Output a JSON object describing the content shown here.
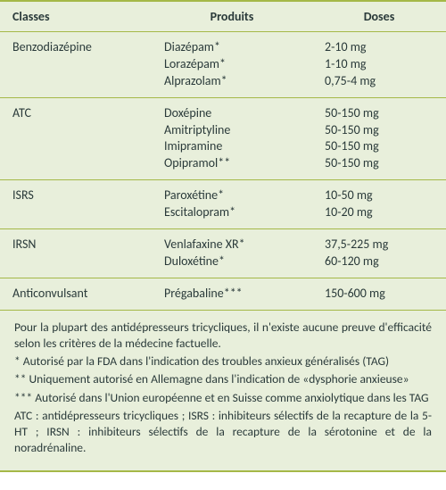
{
  "colors": {
    "background": "#e8efdb",
    "rule": "#a5b848",
    "text": "#2a3a3a"
  },
  "header": {
    "classes": "Classes",
    "produits": "Produits",
    "doses": "Doses"
  },
  "rows": [
    {
      "class": "Benzodiazépine",
      "products": [
        "Diazépam*",
        "Lorazépam*",
        "Alprazolam*"
      ],
      "doses": [
        "2-10 mg",
        "1-10 mg",
        "0,75-4 mg"
      ]
    },
    {
      "class": "ATC",
      "products": [
        "Doxépine",
        "Amitriptyline",
        "Imipramine",
        "Opipramol**"
      ],
      "doses": [
        "50-150 mg",
        "50-150 mg",
        "50-150 mg",
        "50-150 mg"
      ]
    },
    {
      "class": "ISRS",
      "products": [
        "Paroxétine*",
        "Escitalopram*"
      ],
      "doses": [
        "10-50 mg",
        "10-20 mg"
      ]
    },
    {
      "class": "IRSN",
      "products": [
        "Venlafaxine XR*",
        "Duloxétine*"
      ],
      "doses": [
        "37,5-225 mg",
        "60-120 mg"
      ]
    },
    {
      "class": "Anticonvulsant",
      "products": [
        "Prégabaline***"
      ],
      "doses": [
        "150-600 mg"
      ]
    }
  ],
  "footnotes": [
    "Pour la plupart des antidépresseurs tricycliques, il n'existe aucune preuve d'efficacité selon les critères de la médecine factuelle.",
    "* Autorisé par la FDA dans l'indication des troubles anxieux généralisés (TAG)",
    "** Uniquement autorisé en Allemagne dans l'indication de «dysphorie anxieuse»",
    "*** Autorisé dans l'Union européenne et en Suisse comme anxiolytique dans les TAG",
    "ATC : antidépresseurs tricycliques ; ISRS : inhibiteurs sélectifs de la recapture de la 5-HT ; IRSN : inhibiteurs sélectifs de la recapture de la sérotonine et de la noradrénaline."
  ]
}
